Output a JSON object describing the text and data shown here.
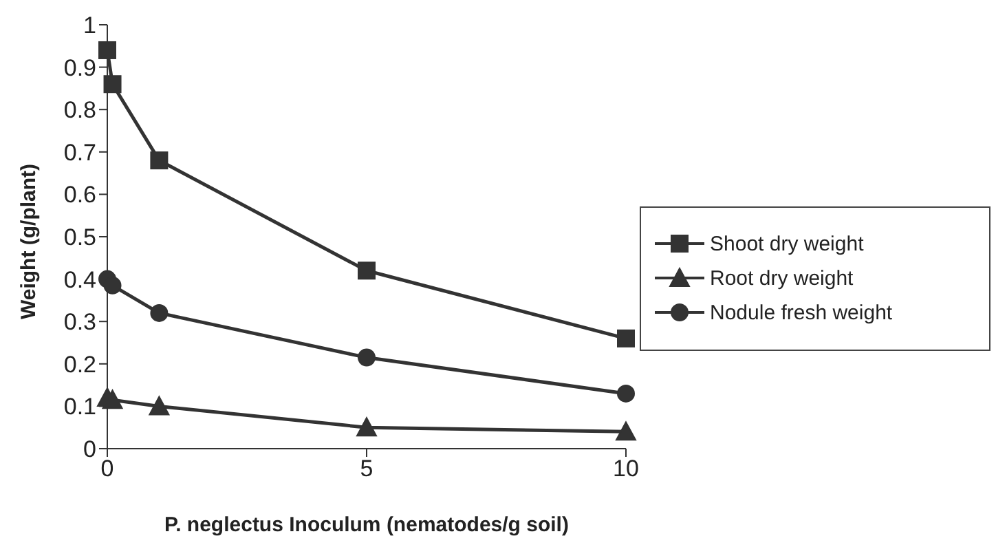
{
  "chart_data": {
    "type": "line",
    "xlabel": "P. neglectus  Inoculum (nematodes/g soil)",
    "ylabel": "Weight (g/plant)",
    "x": [
      0,
      0.1,
      1,
      5,
      10
    ],
    "xlim": [
      0,
      10
    ],
    "xticks": [
      0,
      5,
      10
    ],
    "ylim": [
      0,
      1
    ],
    "yticks": [
      0,
      0.1,
      0.2,
      0.3,
      0.4,
      0.5,
      0.6,
      0.7,
      0.8,
      0.9,
      1
    ],
    "grid": false,
    "legend": "right",
    "series": [
      {
        "name": "Shoot dry weight",
        "color": "#333333",
        "marker": "square",
        "values": [
          0.94,
          0.86,
          0.68,
          0.42,
          0.26
        ]
      },
      {
        "name": "Root dry weight",
        "color": "#333333",
        "marker": "triangle",
        "values": [
          0.12,
          0.115,
          0.1,
          0.05,
          0.04
        ]
      },
      {
        "name": "Nodule fresh weight",
        "color": "#333333",
        "marker": "circle",
        "values": [
          0.4,
          0.385,
          0.32,
          0.215,
          0.13
        ]
      }
    ]
  }
}
